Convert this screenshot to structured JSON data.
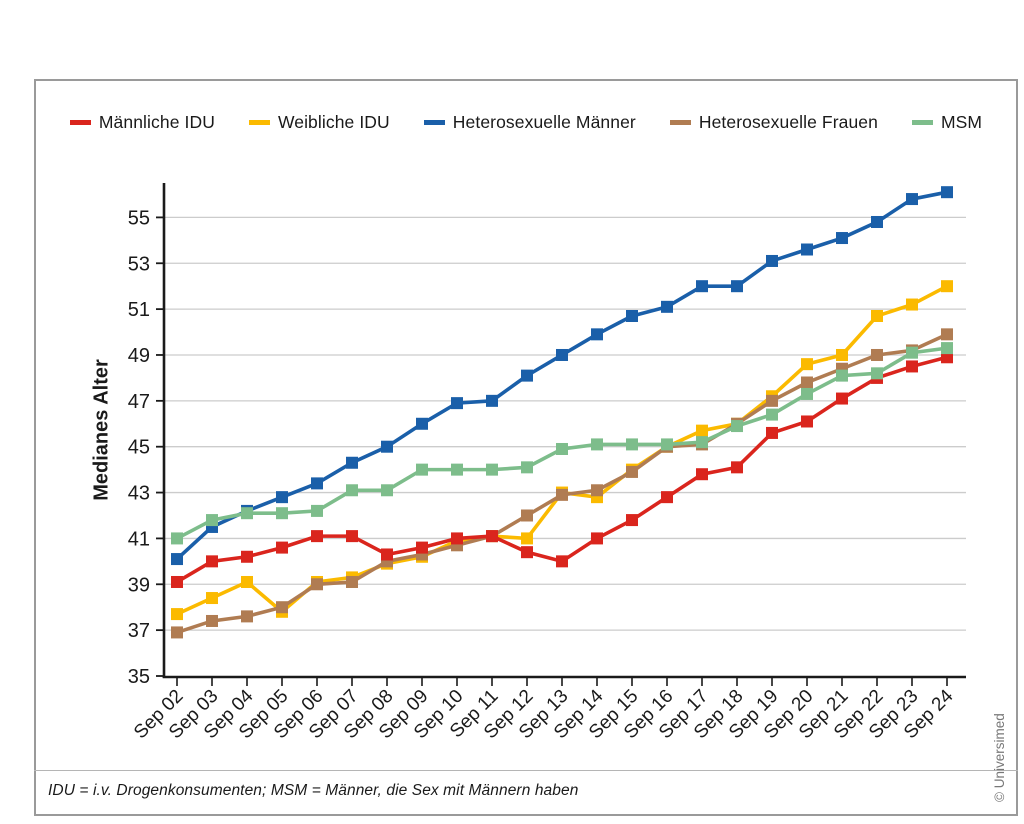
{
  "chart_data": {
    "type": "line",
    "title": "",
    "xlabel": "",
    "ylabel": "Medianes Alter",
    "x_categories": [
      "Sep 02",
      "Sep 03",
      "Sep 04",
      "Sep 05",
      "Sep 06",
      "Sep 07",
      "Sep 08",
      "Sep 09",
      "Sep 10",
      "Sep 11",
      "Sep 12",
      "Sep 13",
      "Sep 14",
      "Sep 15",
      "Sep 16",
      "Sep 17",
      "Sep 18",
      "Sep 19",
      "Sep 20",
      "Sep 21",
      "Sep 22",
      "Sep 23",
      "Sep 24"
    ],
    "y_ticks": [
      35,
      37,
      39,
      41,
      43,
      45,
      47,
      49,
      51,
      53,
      55
    ],
    "ylim": [
      35,
      56.8
    ],
    "grid": "horizontal-only",
    "legend_position": "top",
    "marker": "square",
    "draw_order": [
      1,
      3,
      2,
      0,
      4
    ],
    "series": [
      {
        "name": "Männliche IDU",
        "color": "#da251d",
        "values": [
          39.1,
          40.0,
          40.2,
          40.6,
          41.1,
          41.1,
          40.3,
          40.6,
          41.0,
          41.1,
          40.4,
          40.0,
          41.0,
          41.8,
          42.8,
          43.8,
          44.1,
          45.6,
          46.1,
          47.1,
          48.0,
          48.5,
          48.9
        ]
      },
      {
        "name": "Weibliche IDU",
        "color": "#fbba00",
        "values": [
          37.7,
          38.4,
          39.1,
          37.8,
          39.1,
          39.3,
          39.9,
          40.2,
          40.9,
          41.1,
          41.0,
          43.0,
          42.8,
          44.0,
          45.0,
          45.7,
          46.0,
          47.2,
          48.6,
          49.0,
          50.7,
          51.2,
          52.0
        ]
      },
      {
        "name": "Heterosexuelle Männer",
        "color": "#1a5fa9",
        "values": [
          40.1,
          41.5,
          42.2,
          42.8,
          43.4,
          44.3,
          45.0,
          46.0,
          46.9,
          47.0,
          48.1,
          49.0,
          49.9,
          50.7,
          51.1,
          52.0,
          52.0,
          53.1,
          53.6,
          54.1,
          54.8,
          55.8,
          56.1
        ]
      },
      {
        "name": "Heterosexuelle Frauen",
        "color": "#b07c52",
        "values": [
          36.9,
          37.4,
          37.6,
          38.0,
          39.0,
          39.1,
          40.0,
          40.3,
          40.7,
          41.1,
          42.0,
          42.9,
          43.1,
          43.9,
          45.0,
          45.1,
          46.0,
          47.0,
          47.8,
          48.4,
          49.0,
          49.2,
          49.9
        ]
      },
      {
        "name": "MSM",
        "color": "#7dbd8b",
        "values": [
          41.0,
          41.8,
          42.1,
          42.1,
          42.2,
          43.1,
          43.1,
          44.0,
          44.0,
          44.0,
          44.1,
          44.9,
          45.1,
          45.1,
          45.1,
          45.2,
          45.9,
          46.4,
          47.3,
          48.1,
          48.2,
          49.1,
          49.3
        ]
      }
    ]
  },
  "footnote": "IDU = i.v. Drogenkonsumenten; MSM = Männer, die Sex mit Männern haben",
  "copyright": "© Universimed"
}
